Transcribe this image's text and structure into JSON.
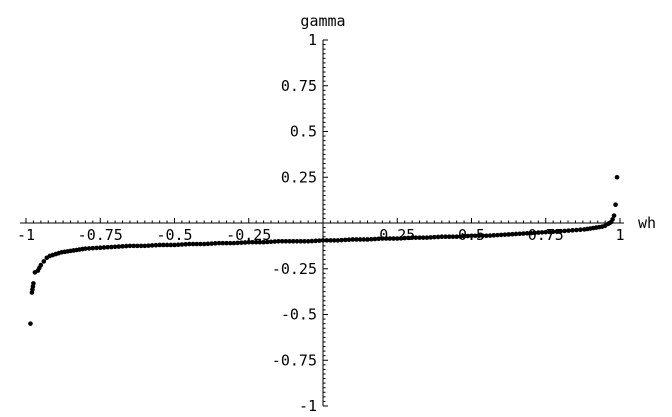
{
  "chart_data": {
    "type": "scatter",
    "title": "",
    "xlabel": "wh",
    "ylabel": "gamma",
    "xlim": [
      -1,
      1
    ],
    "ylim": [
      -1,
      1
    ],
    "grid": false,
    "x_ticks": [
      "-1",
      "-0.75",
      "-0.5",
      "-0.25",
      "0.25",
      "0.5",
      "0.75",
      "1"
    ],
    "y_ticks": [
      "1",
      "0.75",
      "0.5",
      "0.25",
      "-0.25",
      "-0.5",
      "-0.75",
      "-1"
    ],
    "series": [
      {
        "color": "#000000",
        "x": [
          -0.985,
          -0.98,
          -0.975,
          -0.97,
          -0.96,
          -0.95,
          -0.94,
          -0.93,
          -0.92,
          -0.9,
          -0.88,
          -0.86,
          -0.84,
          -0.82,
          -0.8,
          -0.75,
          -0.7,
          -0.65,
          -0.6,
          -0.55,
          -0.5,
          -0.45,
          -0.4,
          -0.35,
          -0.3,
          -0.25,
          -0.2,
          -0.15,
          -0.1,
          -0.05,
          0.0,
          0.05,
          0.1,
          0.15,
          0.2,
          0.25,
          0.3,
          0.35,
          0.4,
          0.45,
          0.5,
          0.55,
          0.6,
          0.65,
          0.7,
          0.75,
          0.8,
          0.84,
          0.88,
          0.9,
          0.92,
          0.94,
          0.95,
          0.96,
          0.965,
          0.97,
          0.975,
          0.98,
          0.985,
          0.99
        ],
        "y": [
          -0.55,
          -0.38,
          -0.33,
          -0.27,
          -0.26,
          -0.23,
          -0.21,
          -0.19,
          -0.18,
          -0.17,
          -0.16,
          -0.155,
          -0.15,
          -0.145,
          -0.14,
          -0.135,
          -0.13,
          -0.125,
          -0.125,
          -0.12,
          -0.12,
          -0.115,
          -0.115,
          -0.11,
          -0.11,
          -0.105,
          -0.105,
          -0.1,
          -0.1,
          -0.1,
          -0.095,
          -0.095,
          -0.09,
          -0.09,
          -0.085,
          -0.085,
          -0.08,
          -0.08,
          -0.075,
          -0.075,
          -0.07,
          -0.07,
          -0.065,
          -0.06,
          -0.055,
          -0.05,
          -0.045,
          -0.04,
          -0.035,
          -0.03,
          -0.025,
          -0.02,
          -0.015,
          -0.005,
          0.0,
          0.005,
          0.02,
          0.04,
          0.1,
          0.25
        ]
      }
    ]
  }
}
